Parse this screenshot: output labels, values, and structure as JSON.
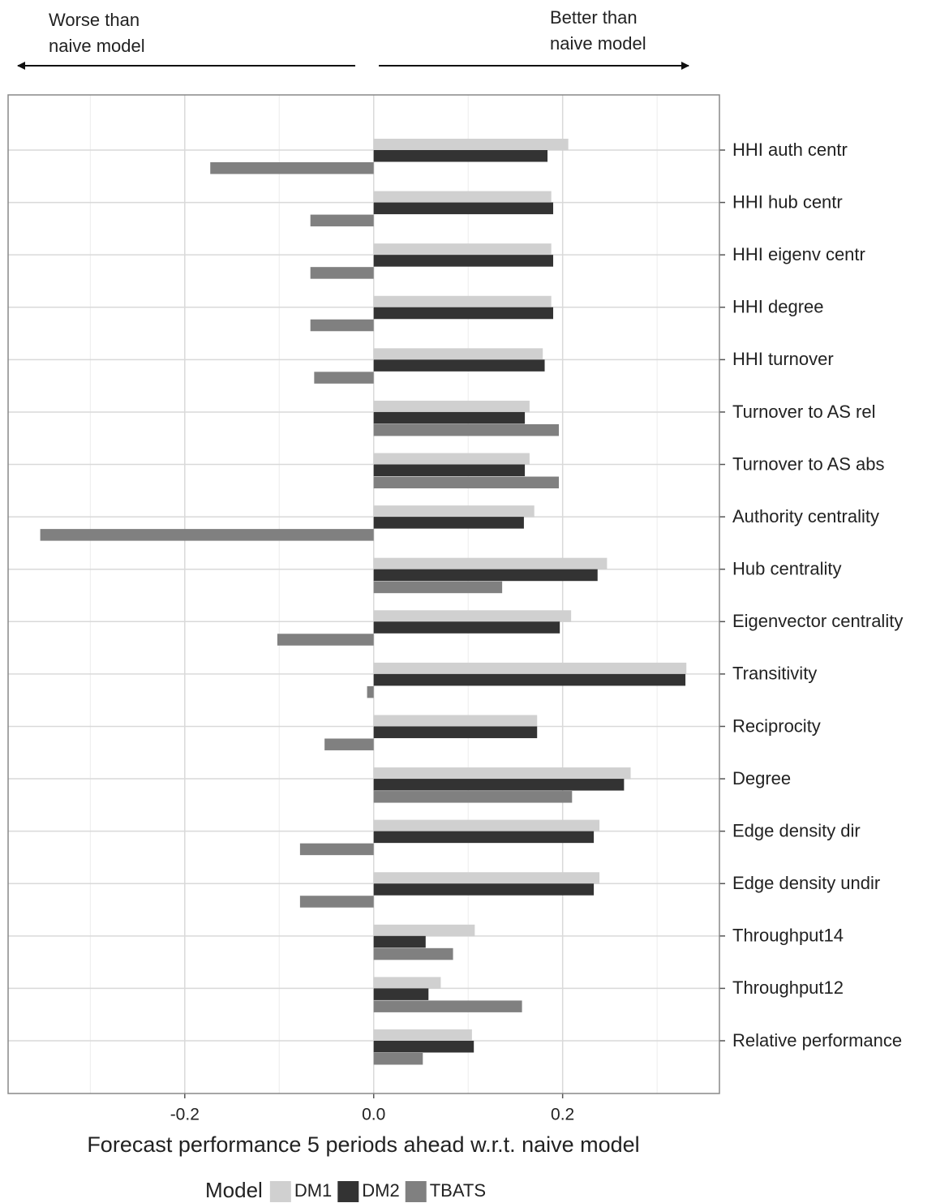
{
  "chart_data": {
    "type": "bar",
    "orientation": "horizontal",
    "annotations": [
      [
        "Worse than",
        "naive model"
      ],
      [
        "Better than",
        "naive model"
      ]
    ],
    "x_label": "Forecast performance 5 periods ahead w.r.t. naive model",
    "legend_title": "Model",
    "categories": [
      "HHI auth centr",
      "HHI hub centr",
      "HHI eigenv centr",
      "HHI degree",
      "HHI turnover",
      "Turnover to AS rel",
      "Turnover to AS abs",
      "Authority centrality",
      "Hub centrality",
      "Eigenvector centrality",
      "Transitivity",
      "Reciprocity",
      "Degree",
      "Edge density dir",
      "Edge density undir",
      "Throughput14",
      "Throughput12",
      "Relative performance"
    ],
    "series": [
      {
        "name": "DM1",
        "color": "#d0d0d0",
        "values": [
          0.206,
          0.188,
          0.188,
          0.188,
          0.179,
          0.165,
          0.165,
          0.17,
          0.247,
          0.209,
          0.331,
          0.173,
          0.272,
          0.239,
          0.239,
          0.107,
          0.071,
          0.104
        ]
      },
      {
        "name": "DM2",
        "color": "#333333",
        "values": [
          0.184,
          0.19,
          0.19,
          0.19,
          0.181,
          0.16,
          0.16,
          0.159,
          0.237,
          0.197,
          0.33,
          0.173,
          0.265,
          0.233,
          0.233,
          0.055,
          0.058,
          0.106
        ]
      },
      {
        "name": "TBATS",
        "color": "#808080",
        "values": [
          -0.173,
          -0.067,
          -0.067,
          -0.067,
          -0.063,
          0.196,
          0.196,
          -0.353,
          0.136,
          -0.102,
          -0.007,
          -0.052,
          0.21,
          -0.078,
          -0.078,
          0.084,
          0.157,
          0.052
        ]
      }
    ],
    "xlim": [
      -0.387,
      0.366
    ],
    "xticks": [
      -0.2,
      {
        "value": 0,
        "label": "0.0"
      },
      0.2
    ],
    "xminor": [
      -0.3,
      -0.1,
      0.1,
      0.3
    ],
    "grid": true
  }
}
